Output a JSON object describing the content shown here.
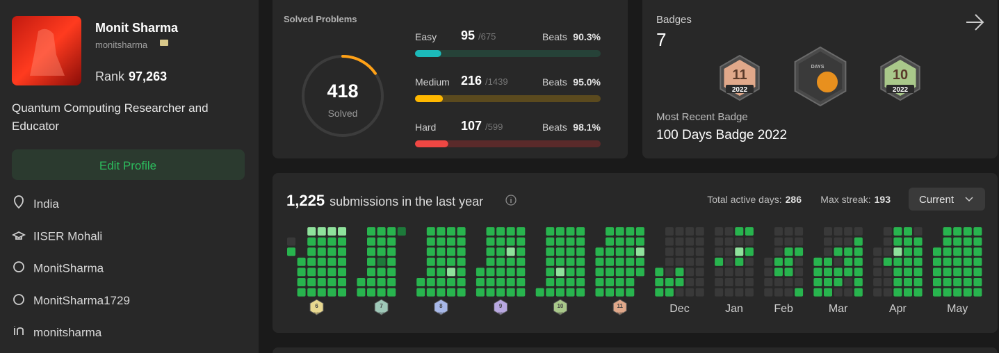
{
  "profile": {
    "name": "Monit Sharma",
    "username": "monitsharma",
    "rank_label": "Rank",
    "rank": "97,263",
    "bio": "Quantum Computing Researcher and Educator",
    "edit_button": "Edit Profile",
    "details": [
      "India",
      "IISER Mohali",
      "MonitSharma",
      "MonitSharma1729",
      "monitsharma"
    ]
  },
  "solved": {
    "title": "Solved Problems",
    "total": 418,
    "total_caption": "Solved",
    "beats_caption": "Beats",
    "levels": [
      {
        "name": "Easy",
        "solved": 95,
        "total": {
          "value": 675,
          "label": "/675"
        },
        "beats": "90.3%",
        "color": "#1cbaba",
        "track": "#264238"
      },
      {
        "name": "Medium",
        "solved": 216,
        "total": {
          "value": 1439,
          "label": "/1439"
        },
        "beats": "95.0%",
        "color": "#ffb800",
        "track": "#5b4a1e"
      },
      {
        "name": "Hard",
        "solved": 107,
        "total": {
          "value": 599,
          "label": "/599"
        },
        "beats": "98.1%",
        "color": "#ef4743",
        "track": "#5a2a2a"
      }
    ]
  },
  "badges": {
    "title": "Badges",
    "count": "7",
    "recent_caption": "Most Recent Badge",
    "recent": "100 Days Badge 2022",
    "items": [
      {
        "label": "11",
        "year": "2022",
        "color": "#e0a88a"
      },
      {
        "label": "DAYS",
        "color": "#e8901e"
      },
      {
        "label": "10",
        "year": "2022",
        "color": "#a9c88a"
      }
    ]
  },
  "heatmap": {
    "count": "1,225",
    "caption": "submissions in the last year",
    "active_caption": "Total active days:",
    "active_days": 286,
    "streak_caption": "Max streak:",
    "max_streak": 193,
    "dropdown": "Current",
    "level_colors": [
      "#393939",
      "#1d7a3a",
      "#28b44e",
      "#8fe29c"
    ],
    "months": [
      {
        "badge": "6",
        "badge_year": "2022",
        "badge_color": "#e8d890",
        "weeks": [
          [
            null,
            0,
            2,
            null,
            null,
            null,
            null
          ],
          [
            null,
            null,
            null,
            2,
            2,
            2,
            2
          ],
          [
            3,
            2,
            2,
            2,
            2,
            2,
            2
          ],
          [
            3,
            2,
            2,
            2,
            2,
            2,
            2
          ],
          [
            3,
            2,
            2,
            2,
            2,
            2,
            2
          ],
          [
            3,
            2,
            2,
            2,
            2,
            2,
            2
          ]
        ]
      },
      {
        "badge": "7",
        "badge_year": "2022",
        "badge_color": "#9fc8b8",
        "weeks": [
          [
            null,
            null,
            null,
            null,
            null,
            2,
            2
          ],
          [
            2,
            2,
            2,
            2,
            2,
            2,
            2
          ],
          [
            2,
            2,
            2,
            1,
            2,
            2,
            2
          ],
          [
            2,
            2,
            2,
            2,
            2,
            2,
            2
          ],
          [
            1,
            null,
            null,
            null,
            null,
            null,
            null
          ]
        ]
      },
      {
        "badge": "8",
        "badge_year": "2022",
        "badge_color": "#a8b8e8",
        "weeks": [
          [
            null,
            null,
            null,
            null,
            null,
            2,
            2
          ],
          [
            2,
            2,
            2,
            2,
            2,
            2,
            2
          ],
          [
            2,
            2,
            2,
            2,
            2,
            2,
            2
          ],
          [
            2,
            2,
            2,
            2,
            3,
            2,
            2
          ],
          [
            2,
            2,
            2,
            2,
            2,
            2,
            2
          ]
        ]
      },
      {
        "badge": "9",
        "badge_year": "2022",
        "badge_color": "#b8a8e0",
        "weeks": [
          [
            null,
            null,
            null,
            null,
            2,
            2,
            2
          ],
          [
            2,
            2,
            2,
            2,
            2,
            2,
            2
          ],
          [
            2,
            2,
            2,
            2,
            2,
            2,
            2
          ],
          [
            2,
            2,
            3,
            2,
            2,
            2,
            2
          ],
          [
            2,
            2,
            2,
            2,
            2,
            2,
            2
          ]
        ]
      },
      {
        "badge": "10",
        "badge_year": "2022",
        "badge_color": "#a9c88a",
        "weeks": [
          [
            null,
            null,
            null,
            null,
            null,
            null,
            2
          ],
          [
            2,
            2,
            2,
            2,
            2,
            2,
            2
          ],
          [
            2,
            2,
            2,
            2,
            3,
            2,
            2
          ],
          [
            2,
            2,
            2,
            2,
            2,
            2,
            2
          ],
          [
            2,
            2,
            2,
            2,
            2,
            2,
            2
          ]
        ]
      },
      {
        "badge": "11",
        "badge_year": "2022",
        "badge_color": "#e0a88a",
        "weeks": [
          [
            null,
            null,
            2,
            2,
            2,
            2,
            2
          ],
          [
            2,
            2,
            2,
            2,
            2,
            2,
            2
          ],
          [
            2,
            2,
            2,
            2,
            2,
            2,
            2
          ],
          [
            2,
            2,
            2,
            2,
            2,
            2,
            2
          ],
          [
            2,
            2,
            3,
            2,
            2,
            null,
            null
          ]
        ]
      },
      {
        "label": "Dec",
        "weeks": [
          [
            null,
            null,
            null,
            null,
            2,
            2,
            2
          ],
          [
            0,
            0,
            0,
            0,
            0,
            2,
            2
          ],
          [
            0,
            0,
            0,
            0,
            2,
            2,
            0
          ],
          [
            0,
            0,
            0,
            0,
            0,
            0,
            0
          ],
          [
            0,
            0,
            0,
            0,
            0,
            0,
            0
          ]
        ]
      },
      {
        "label": "Jan",
        "weeks": [
          [
            0,
            0,
            0,
            2,
            0,
            0,
            0
          ],
          [
            0,
            0,
            0,
            0,
            0,
            0,
            0
          ],
          [
            2,
            0,
            3,
            2,
            0,
            0,
            0
          ],
          [
            2,
            0,
            2,
            0,
            0,
            0,
            0
          ]
        ]
      },
      {
        "label": "Feb",
        "weeks": [
          [
            null,
            null,
            null,
            0,
            0,
            0,
            0
          ],
          [
            0,
            0,
            0,
            2,
            2,
            0,
            0
          ],
          [
            0,
            0,
            2,
            2,
            2,
            0,
            0
          ],
          [
            0,
            0,
            2,
            0,
            0,
            0,
            2
          ]
        ]
      },
      {
        "label": "Mar",
        "weeks": [
          [
            null,
            null,
            null,
            2,
            2,
            2,
            2
          ],
          [
            0,
            0,
            0,
            2,
            2,
            2,
            2
          ],
          [
            0,
            0,
            2,
            0,
            2,
            2,
            0
          ],
          [
            0,
            0,
            2,
            2,
            2,
            0,
            0
          ],
          [
            0,
            2,
            2,
            2,
            2,
            2,
            2
          ]
        ]
      },
      {
        "label": "Apr",
        "weeks": [
          [
            null,
            null,
            0,
            0,
            0,
            0,
            0
          ],
          [
            0,
            0,
            0,
            2,
            0,
            0,
            0
          ],
          [
            2,
            2,
            3,
            2,
            2,
            2,
            2
          ],
          [
            2,
            2,
            2,
            2,
            2,
            2,
            2
          ],
          [
            0,
            2,
            2,
            2,
            2,
            2,
            2
          ]
        ]
      },
      {
        "label": "May",
        "weeks": [
          [
            null,
            null,
            2,
            2,
            2,
            2,
            2
          ],
          [
            2,
            2,
            2,
            2,
            2,
            2,
            2
          ],
          [
            2,
            2,
            2,
            2,
            2,
            2,
            2
          ],
          [
            2,
            2,
            2,
            2,
            2,
            2,
            2
          ],
          [
            2,
            2,
            2,
            2,
            2,
            2,
            2
          ]
        ]
      }
    ]
  }
}
